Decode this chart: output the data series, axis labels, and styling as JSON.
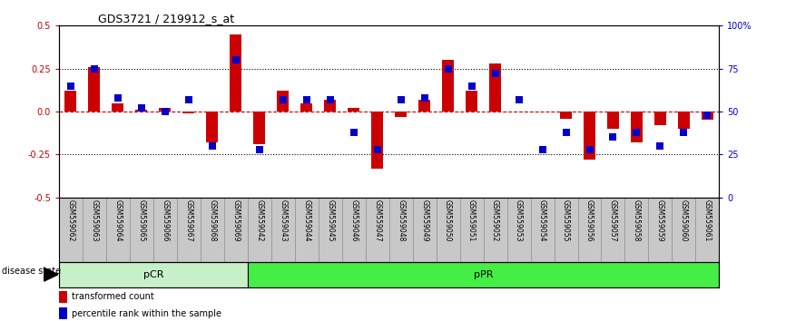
{
  "title": "GDS3721 / 219912_s_at",
  "samples": [
    "GSM559062",
    "GSM559063",
    "GSM559064",
    "GSM559065",
    "GSM559066",
    "GSM559067",
    "GSM559068",
    "GSM559069",
    "GSM559042",
    "GSM559043",
    "GSM559044",
    "GSM559045",
    "GSM559046",
    "GSM559047",
    "GSM559048",
    "GSM559049",
    "GSM559050",
    "GSM559051",
    "GSM559052",
    "GSM559053",
    "GSM559054",
    "GSM559055",
    "GSM559056",
    "GSM559057",
    "GSM559058",
    "GSM559059",
    "GSM559060",
    "GSM559061"
  ],
  "red_values": [
    0.12,
    0.26,
    0.05,
    0.01,
    0.02,
    -0.01,
    -0.18,
    0.45,
    -0.19,
    0.12,
    0.05,
    0.07,
    0.02,
    -0.33,
    -0.03,
    0.07,
    0.3,
    0.12,
    0.28,
    0.0,
    0.0,
    -0.04,
    -0.28,
    -0.1,
    -0.18,
    -0.08,
    -0.1,
    -0.05
  ],
  "blue_percentiles": [
    65,
    75,
    58,
    52,
    50,
    57,
    30,
    80,
    28,
    57,
    57,
    57,
    38,
    28,
    57,
    58,
    75,
    65,
    72,
    57,
    28,
    38,
    28,
    35,
    38,
    30,
    38,
    48
  ],
  "pCR_count": 8,
  "pPR_count": 20,
  "ylim": [
    -0.5,
    0.5
  ],
  "y_left_ticks": [
    -0.5,
    -0.25,
    0.0,
    0.25,
    0.5
  ],
  "y_right_ticks": [
    0,
    25,
    50,
    75,
    100
  ],
  "red_color": "#cc0000",
  "blue_color": "#0000cc",
  "bar_width": 0.5,
  "blue_marker_size": 6,
  "pCR_color": "#c8f0c8",
  "pPR_color": "#44ee44",
  "disease_state_label": "disease state",
  "legend_red": "transformed count",
  "legend_blue": "percentile rank within the sample",
  "zero_line_color": "#cc0000",
  "bg_color": "#c8c8c8"
}
